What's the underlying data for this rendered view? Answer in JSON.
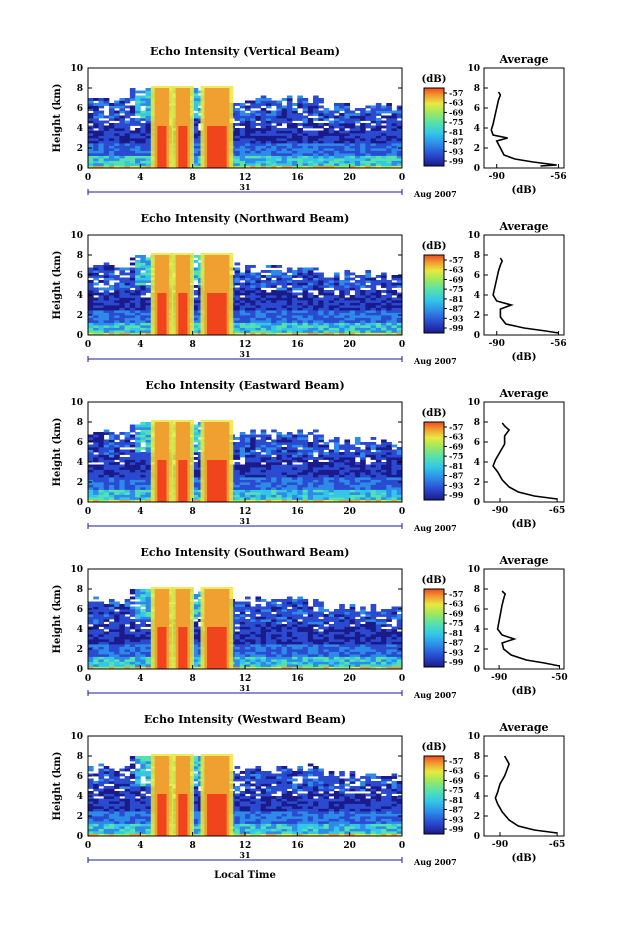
{
  "figure": {
    "y_label": "Height (km)",
    "x_label": "Local Time",
    "date_day": "31",
    "date_month": "Aug 2007",
    "colorbar_unit": "(dB)",
    "average_title": "Average",
    "average_xlabel": "(dB)"
  },
  "colors": {
    "scale": [
      "#1a1a8a",
      "#2a4ad0",
      "#2e8ae8",
      "#33c6e8",
      "#55e0b0",
      "#9ce860",
      "#e8e840",
      "#f0a030",
      "#f04a20"
    ],
    "cloud": "#f0441c",
    "background": "#ffffff"
  },
  "chart_data": [
    {
      "type": "heatmap",
      "title": "Echo Intensity (Vertical Beam)",
      "ylabel": "Height (km)",
      "xlim": [
        0,
        24
      ],
      "ylim": [
        0,
        10
      ],
      "x_ticks": [
        "0",
        "4",
        "8",
        "12",
        "16",
        "20",
        "0"
      ],
      "y_ticks": [
        "0",
        "2",
        "4",
        "6",
        "8",
        "10"
      ],
      "colorbar_ticks": [
        "-57",
        "-63",
        "-69",
        "-75",
        "-81",
        "-87",
        "-93",
        "-99"
      ],
      "average": {
        "title": "Average",
        "xlabel": "(dB)",
        "x_ticks": [
          "-90",
          "-56"
        ],
        "xlim": [
          -97,
          -53
        ],
        "profile": [
          [
            -66,
            0.2
          ],
          [
            -57,
            0.3
          ],
          [
            -70,
            0.6
          ],
          [
            -80,
            0.9
          ],
          [
            -86,
            1.3
          ],
          [
            -88,
            2.0
          ],
          [
            -90,
            2.7
          ],
          [
            -84,
            3.0
          ],
          [
            -92,
            3.3
          ],
          [
            -93,
            3.8
          ],
          [
            -92,
            4.4
          ],
          [
            -91,
            5.2
          ],
          [
            -90,
            6.0
          ],
          [
            -89,
            6.8
          ],
          [
            -88,
            7.3
          ],
          [
            -89,
            7.6
          ]
        ]
      }
    },
    {
      "type": "heatmap",
      "title": "Echo Intensity (Northward Beam)",
      "ylabel": "Height (km)",
      "xlim": [
        0,
        24
      ],
      "ylim": [
        0,
        10
      ],
      "x_ticks": [
        "0",
        "4",
        "8",
        "12",
        "16",
        "20",
        "0"
      ],
      "y_ticks": [
        "0",
        "2",
        "4",
        "6",
        "8",
        "10"
      ],
      "colorbar_ticks": [
        "-57",
        "-63",
        "-69",
        "-75",
        "-81",
        "-87",
        "-93",
        "-99"
      ],
      "average": {
        "title": "Average",
        "xlabel": "(dB)",
        "x_ticks": [
          "-90",
          "-56"
        ],
        "xlim": [
          -97,
          -53
        ],
        "profile": [
          [
            -56,
            0.2
          ],
          [
            -63,
            0.4
          ],
          [
            -75,
            0.7
          ],
          [
            -85,
            1.1
          ],
          [
            -88,
            1.8
          ],
          [
            -88,
            2.6
          ],
          [
            -82,
            3.0
          ],
          [
            -90,
            3.4
          ],
          [
            -92,
            4.0
          ],
          [
            -91,
            4.8
          ],
          [
            -90,
            5.6
          ],
          [
            -89,
            6.4
          ],
          [
            -88,
            7.0
          ],
          [
            -87,
            7.4
          ],
          [
            -88,
            7.7
          ]
        ]
      }
    },
    {
      "type": "heatmap",
      "title": "Echo Intensity (Eastward Beam)",
      "ylabel": "Height (km)",
      "xlim": [
        0,
        24
      ],
      "ylim": [
        0,
        10
      ],
      "x_ticks": [
        "0",
        "4",
        "8",
        "12",
        "16",
        "20",
        "0"
      ],
      "y_ticks": [
        "0",
        "2",
        "4",
        "6",
        "8",
        "10"
      ],
      "colorbar_ticks": [
        "-57",
        "-63",
        "-69",
        "-75",
        "-81",
        "-87",
        "-93",
        "-99"
      ],
      "average": {
        "title": "Average",
        "xlabel": "(dB)",
        "x_ticks": [
          "-90",
          "-65"
        ],
        "xlim": [
          -97,
          -62
        ],
        "profile": [
          [
            -65,
            0.3
          ],
          [
            -75,
            0.6
          ],
          [
            -82,
            1.0
          ],
          [
            -86,
            1.5
          ],
          [
            -89,
            2.2
          ],
          [
            -91,
            3.0
          ],
          [
            -93,
            3.6
          ],
          [
            -92,
            4.2
          ],
          [
            -90,
            5.0
          ],
          [
            -88,
            5.8
          ],
          [
            -88,
            6.6
          ],
          [
            -86,
            7.2
          ],
          [
            -88,
            7.6
          ],
          [
            -89,
            7.9
          ]
        ]
      }
    },
    {
      "type": "heatmap",
      "title": "Echo Intensity (Southward Beam)",
      "ylabel": "Height (km)",
      "xlim": [
        0,
        24
      ],
      "ylim": [
        0,
        10
      ],
      "x_ticks": [
        "0",
        "4",
        "8",
        "12",
        "16",
        "20",
        "0"
      ],
      "y_ticks": [
        "0",
        "2",
        "4",
        "6",
        "8",
        "10"
      ],
      "colorbar_ticks": [
        "-57",
        "-63",
        "-69",
        "-75",
        "-81",
        "-87",
        "-93",
        "-99"
      ],
      "average": {
        "title": "Average",
        "xlabel": "(dB)",
        "x_ticks": [
          "-90",
          "-50"
        ],
        "xlim": [
          -100,
          -47
        ],
        "profile": [
          [
            -50,
            0.3
          ],
          [
            -60,
            0.6
          ],
          [
            -72,
            0.9
          ],
          [
            -82,
            1.4
          ],
          [
            -87,
            2.0
          ],
          [
            -88,
            2.6
          ],
          [
            -80,
            3.0
          ],
          [
            -88,
            3.4
          ],
          [
            -91,
            4.0
          ],
          [
            -90,
            4.8
          ],
          [
            -89,
            5.6
          ],
          [
            -88,
            6.4
          ],
          [
            -87,
            7.0
          ],
          [
            -86,
            7.5
          ],
          [
            -88,
            7.8
          ]
        ]
      }
    },
    {
      "type": "heatmap",
      "title": "Echo Intensity (Westward Beam)",
      "ylabel": "Height (km)",
      "xlim": [
        0,
        24
      ],
      "ylim": [
        0,
        10
      ],
      "x_ticks": [
        "0",
        "4",
        "8",
        "12",
        "16",
        "20",
        "0"
      ],
      "y_ticks": [
        "0",
        "2",
        "4",
        "6",
        "8",
        "10"
      ],
      "colorbar_ticks": [
        "-57",
        "-63",
        "-69",
        "-75",
        "-81",
        "-87",
        "-93",
        "-99"
      ],
      "average": {
        "title": "Average",
        "xlabel": "(dB)",
        "x_ticks": [
          "-90",
          "-65"
        ],
        "xlim": [
          -97,
          -62
        ],
        "profile": [
          [
            -65,
            0.3
          ],
          [
            -75,
            0.6
          ],
          [
            -82,
            1.0
          ],
          [
            -86,
            1.6
          ],
          [
            -89,
            2.4
          ],
          [
            -91,
            3.2
          ],
          [
            -92,
            3.8
          ],
          [
            -91,
            4.4
          ],
          [
            -90,
            5.2
          ],
          [
            -88,
            6.0
          ],
          [
            -87,
            6.6
          ],
          [
            -86,
            7.2
          ],
          [
            -87,
            7.6
          ],
          [
            -88,
            8.0
          ]
        ]
      }
    }
  ]
}
